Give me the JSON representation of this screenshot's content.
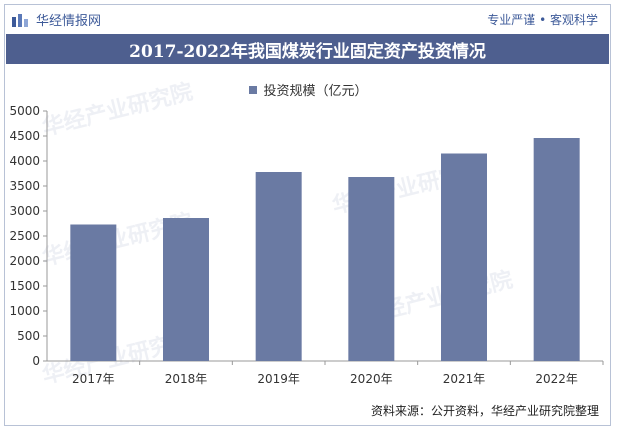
{
  "header": {
    "brand_name": "华经情报网",
    "slogan": "专业严谨 • 客观科学"
  },
  "title": "2017-2022年我国煤炭行业固定资产投资情况",
  "legend_label": "投资规模（亿元）",
  "source": "资料来源：公开资料，华经产业研究院整理",
  "watermark": "华经产业研究院",
  "colors": {
    "bar": "#6a7aa3",
    "title_bg": "#4e5f8f",
    "brand": "#3d5a99"
  },
  "chart_data": {
    "type": "bar",
    "categories": [
      "2017年",
      "2018年",
      "2019年",
      "2020年",
      "2021年",
      "2022年"
    ],
    "series": [
      {
        "name": "投资规模（亿元）",
        "values": [
          2730,
          2860,
          3780,
          3680,
          4150,
          4460
        ]
      }
    ],
    "ylim": [
      0,
      5000
    ],
    "yticks": [
      0,
      500,
      1000,
      1500,
      2000,
      2500,
      3000,
      3500,
      4000,
      4500,
      5000
    ],
    "grid": false,
    "legend_position": "top"
  }
}
